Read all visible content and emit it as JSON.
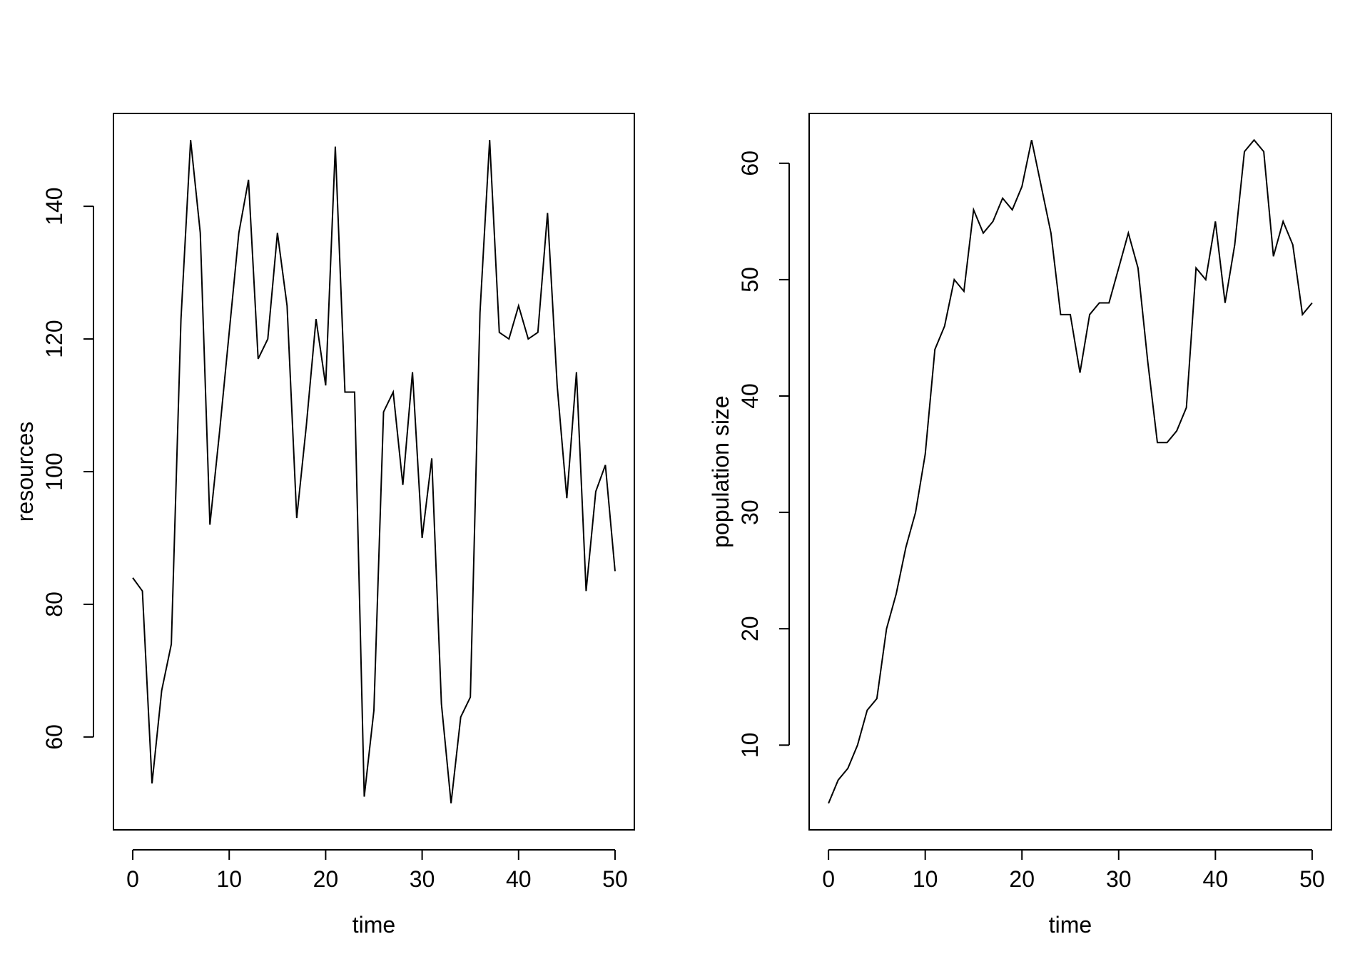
{
  "chart_data": [
    {
      "type": "line",
      "xlabel": "time",
      "ylabel": "resources",
      "xlim": [
        0,
        50
      ],
      "ylim": [
        50,
        150
      ],
      "x_ticks": [
        0,
        10,
        20,
        30,
        40,
        50
      ],
      "y_ticks": [
        60,
        80,
        100,
        120,
        140
      ],
      "grid": false,
      "legend": "none",
      "color": "#000000",
      "x": [
        0,
        1,
        2,
        3,
        4,
        5,
        6,
        7,
        8,
        9,
        10,
        11,
        12,
        13,
        14,
        15,
        16,
        17,
        18,
        19,
        20,
        21,
        22,
        23,
        24,
        25,
        26,
        27,
        28,
        29,
        30,
        31,
        32,
        33,
        34,
        35,
        36,
        37,
        38,
        39,
        40,
        41,
        42,
        43,
        44,
        45,
        46,
        47,
        48,
        49,
        50
      ],
      "values": [
        84,
        82,
        53,
        67,
        74,
        123,
        150,
        136,
        92,
        106,
        121,
        136,
        144,
        117,
        120,
        136,
        125,
        93,
        107,
        123,
        113,
        149,
        112,
        112,
        51,
        64,
        109,
        112,
        98,
        115,
        90,
        102,
        65,
        50,
        63,
        66,
        124,
        150,
        121,
        120,
        125,
        120,
        121,
        139,
        113,
        96,
        115,
        82,
        97,
        101,
        85
      ]
    },
    {
      "type": "line",
      "xlabel": "time",
      "ylabel": "population size",
      "xlim": [
        0,
        50
      ],
      "ylim": [
        5,
        62
      ],
      "x_ticks": [
        0,
        10,
        20,
        30,
        40,
        50
      ],
      "y_ticks": [
        10,
        20,
        30,
        40,
        50,
        60
      ],
      "grid": false,
      "legend": "none",
      "color": "#000000",
      "x": [
        0,
        1,
        2,
        3,
        4,
        5,
        6,
        7,
        8,
        9,
        10,
        11,
        12,
        13,
        14,
        15,
        16,
        17,
        18,
        19,
        20,
        21,
        22,
        23,
        24,
        25,
        26,
        27,
        28,
        29,
        30,
        31,
        32,
        33,
        34,
        35,
        36,
        37,
        38,
        39,
        40,
        41,
        42,
        43,
        44,
        45,
        46,
        47,
        48,
        49,
        50
      ],
      "values": [
        5,
        7,
        8,
        10,
        13,
        14,
        20,
        23,
        27,
        30,
        35,
        44,
        46,
        50,
        49,
        56,
        54,
        55,
        57,
        56,
        58,
        62,
        58,
        54,
        47,
        47,
        42,
        47,
        48,
        48,
        51,
        54,
        51,
        43,
        36,
        36,
        37,
        39,
        51,
        50,
        55,
        48,
        53,
        61,
        62,
        61,
        52,
        55,
        53,
        47,
        48
      ]
    }
  ]
}
